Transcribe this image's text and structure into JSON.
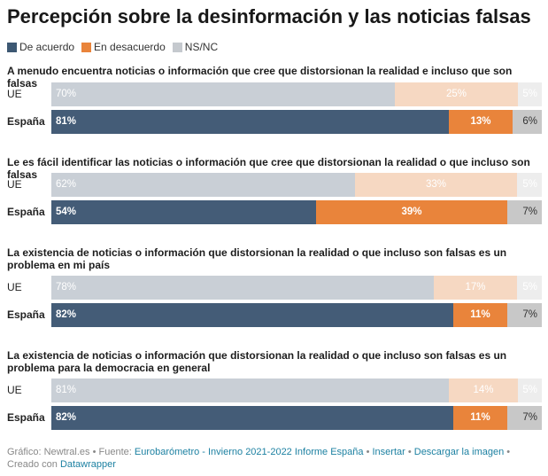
{
  "title": "Percepción sobre la desinformación y las noticias falsas",
  "legend": [
    {
      "label": "De acuerdo",
      "color": "#3d5873"
    },
    {
      "label": "En desacuerdo",
      "color": "#e9843b"
    },
    {
      "label": "NS/NC",
      "color": "#c5c9ce"
    }
  ],
  "colors": {
    "ue": [
      "#c9cfd6",
      "#f6d8c2",
      "#ededed"
    ],
    "es": [
      "#445c77",
      "#e9843b",
      "#c8c8c8"
    ],
    "ue_text": [
      "#ffffff",
      "#ffffff",
      "#ffffff"
    ],
    "es_text": [
      "#ffffff",
      "#ffffff",
      "#333333"
    ]
  },
  "chart_data": {
    "type": "bar",
    "orientation": "horizontal",
    "stacked": true,
    "unit": "%",
    "series_names": [
      "De acuerdo",
      "En desacuerdo",
      "NS/NC"
    ],
    "groups": [
      {
        "question": "A menudo encuentra noticias o información que cree que distorsionan la realidad e incluso que son falsas",
        "rows": [
          {
            "label": "UE",
            "values": [
              70,
              25,
              5
            ]
          },
          {
            "label": "España",
            "values": [
              81,
              13,
              6
            ]
          }
        ]
      },
      {
        "question": "Le es fácil identificar las noticias o información que cree que distorsionan la realidad o que incluso son falsas",
        "rows": [
          {
            "label": "UE",
            "values": [
              62,
              33,
              5
            ]
          },
          {
            "label": "España",
            "values": [
              54,
              39,
              7
            ]
          }
        ]
      },
      {
        "question": "La existencia de noticias o información que distorsionan la realidad o que incluso son falsas es un problema en mi país",
        "rows": [
          {
            "label": "UE",
            "values": [
              78,
              17,
              5
            ]
          },
          {
            "label": "España",
            "values": [
              82,
              11,
              7
            ]
          }
        ]
      },
      {
        "question": "La existencia de noticias o información que distorsionan la realidad o que incluso son falsas es un problema para la democracia en general",
        "rows": [
          {
            "label": "UE",
            "values": [
              81,
              14,
              5
            ]
          },
          {
            "label": "España",
            "values": [
              82,
              11,
              7
            ]
          }
        ]
      }
    ]
  },
  "footer": {
    "source_prefix": "Gráfico: Newtral.es • Fuente: ",
    "source_link": "Eurobarómetro - Invierno 2021-2022 Informe España",
    "sep1": " • ",
    "embed_link": "Insertar",
    "sep2": " • ",
    "download_link": "Descargar la imagen",
    "created_with": " • Creado con ",
    "tool_link": "Datawrapper"
  }
}
